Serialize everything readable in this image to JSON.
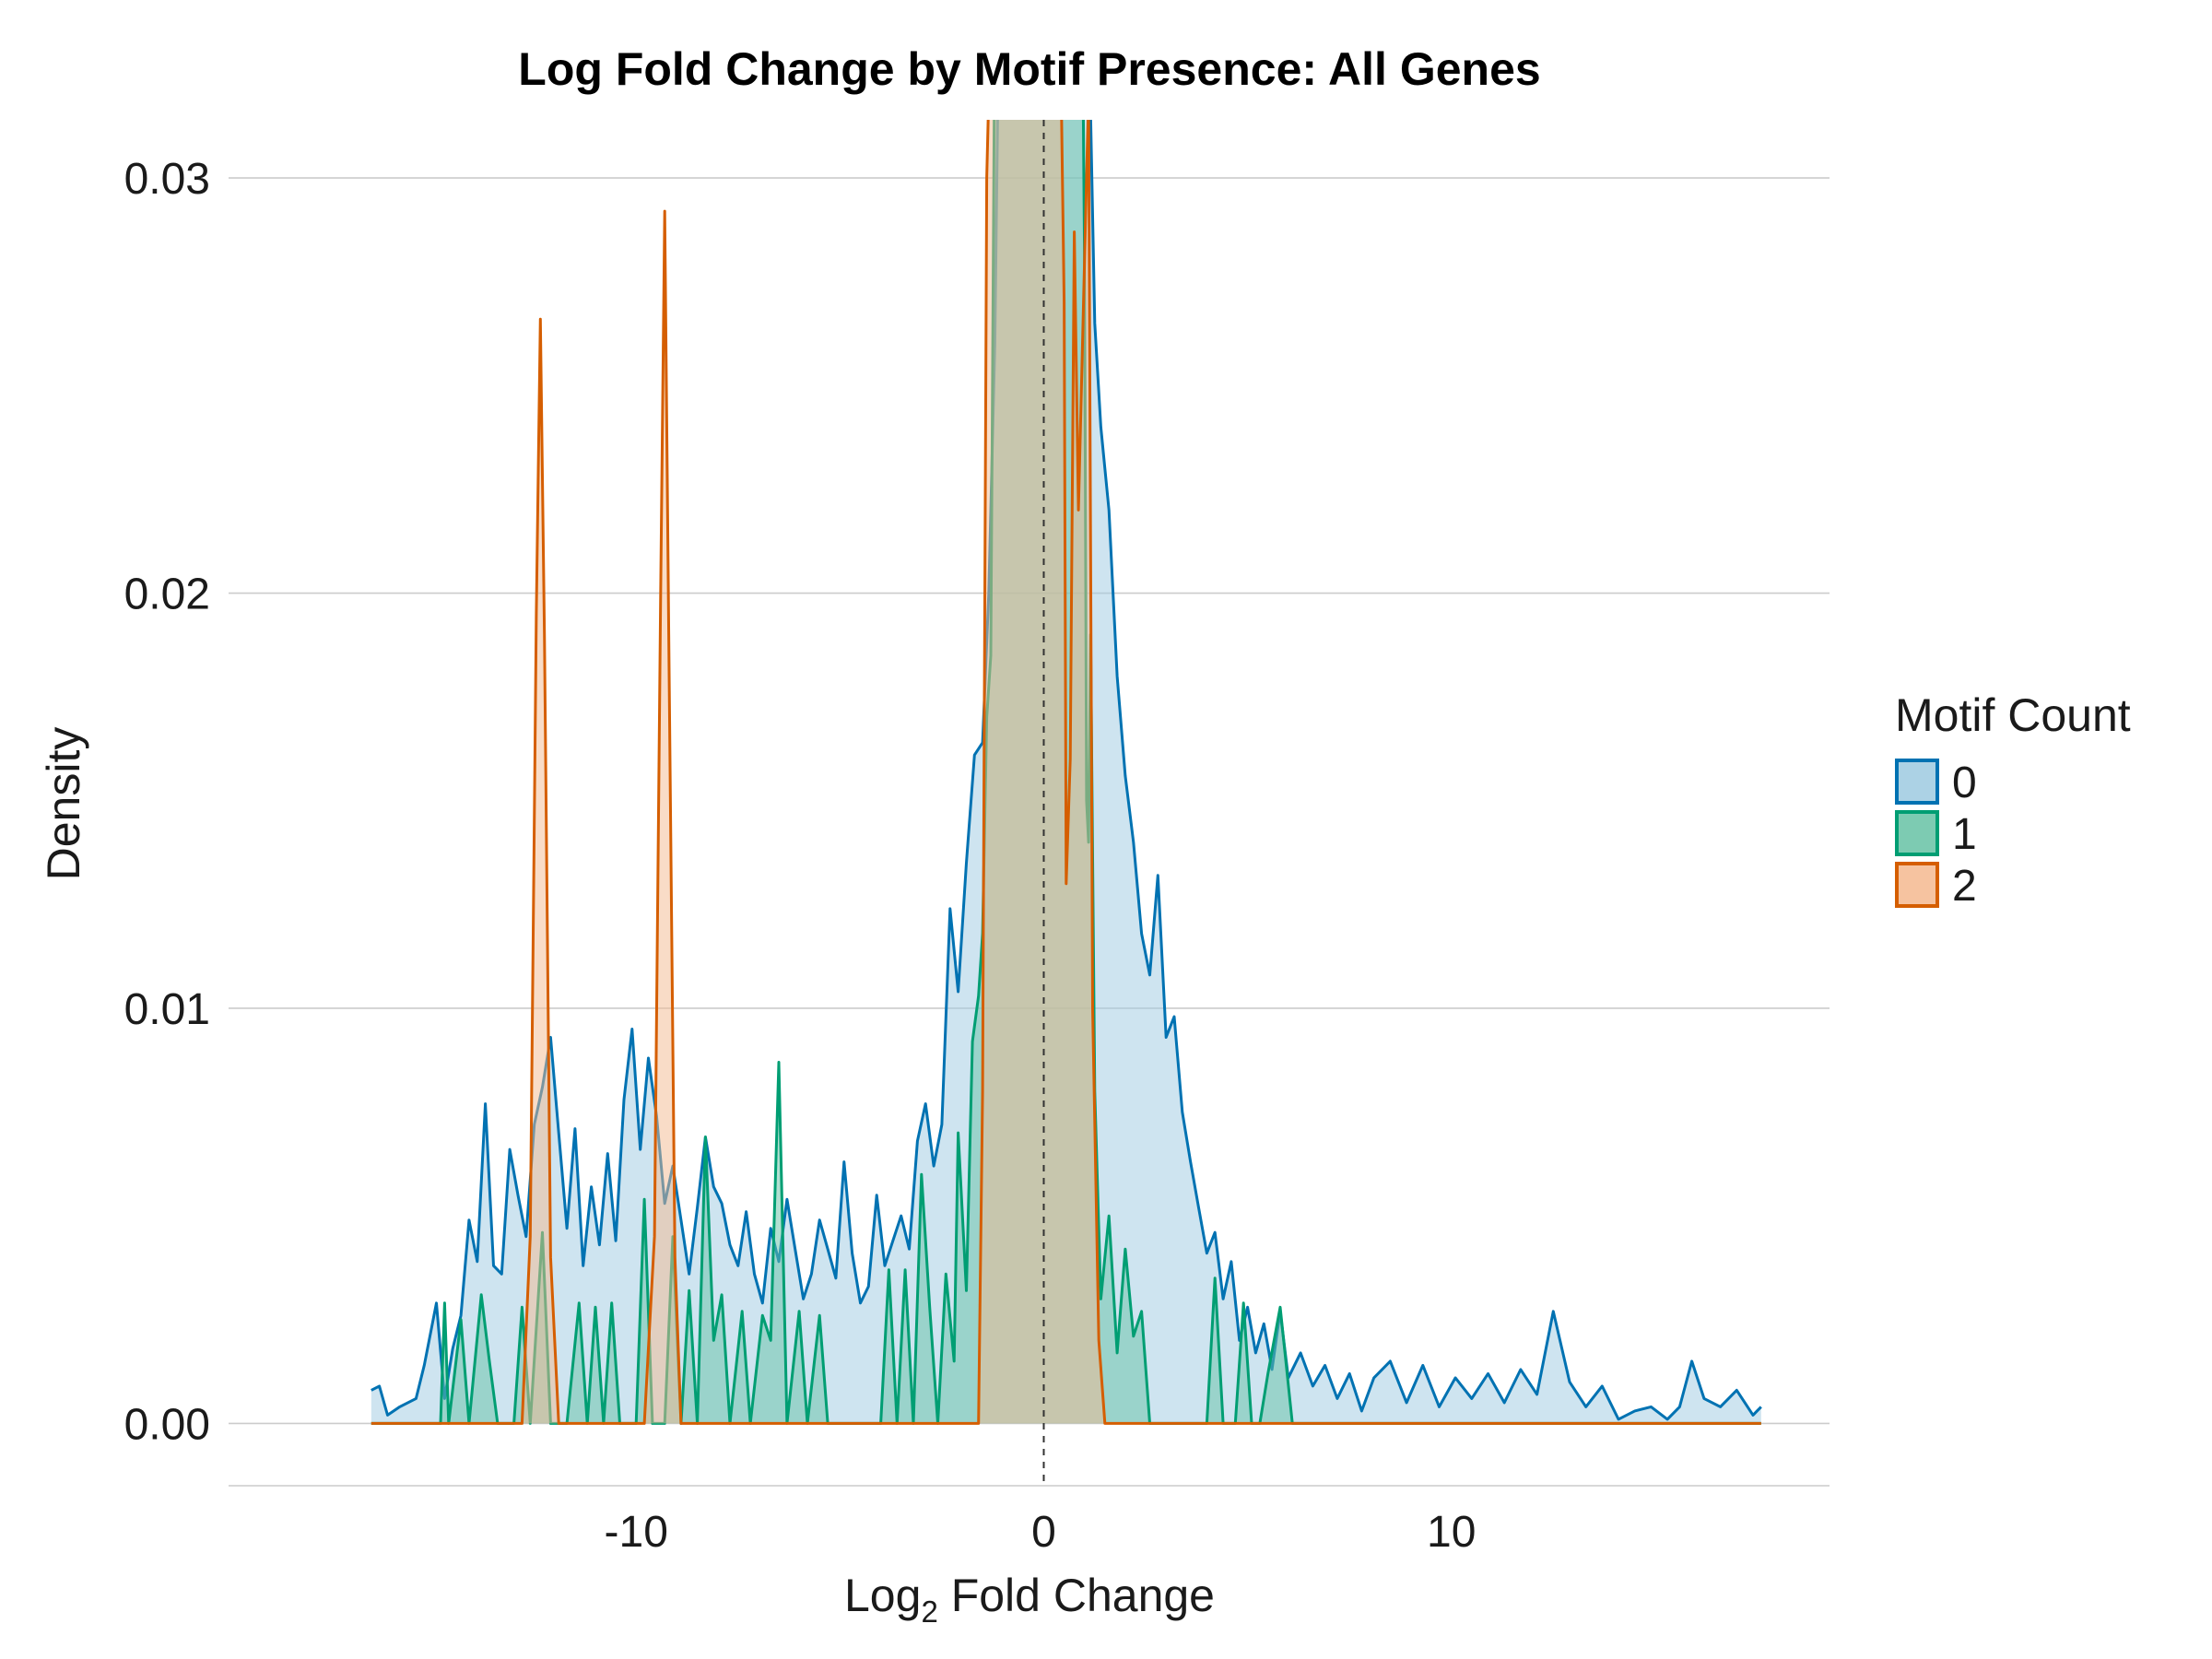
{
  "chart_data": {
    "type": "area",
    "title": "Log Fold Change by Motif Presence: All Genes",
    "xlabel": "Log",
    "xlabel_subscript": "2",
    "xlabel_suffix": " Fold Change",
    "ylabel": "Density",
    "xlim": [
      -20,
      19.3
    ],
    "ylim": [
      -0.0015,
      0.0314
    ],
    "x_ticks": [
      -10,
      0,
      10
    ],
    "x_tick_labels": [
      "-10",
      "0",
      "10"
    ],
    "y_ticks": [
      0,
      0.01,
      0.02,
      0.03
    ],
    "y_tick_labels": [
      "0.00",
      "0.01",
      "0.02",
      "0.03"
    ],
    "grid": "horizontal",
    "reference_line_x": 0,
    "legend": {
      "title": "Motif Count",
      "position": "right"
    },
    "series": [
      {
        "name": "0",
        "color": "#0072B2",
        "fill": "#9ECAE1",
        "points": [
          [
            -16.5,
            0.0008
          ],
          [
            -16.3,
            0.0009
          ],
          [
            -16.1,
            0.0002
          ],
          [
            -15.8,
            0.0004
          ],
          [
            -15.4,
            0.0006
          ],
          [
            -15.2,
            0.0014
          ],
          [
            -14.9,
            0.0029
          ],
          [
            -14.7,
            0.0006
          ],
          [
            -14.5,
            0.0018
          ],
          [
            -14.3,
            0.0026
          ],
          [
            -14.1,
            0.0049
          ],
          [
            -13.9,
            0.0039
          ],
          [
            -13.7,
            0.0077
          ],
          [
            -13.5,
            0.0038
          ],
          [
            -13.3,
            0.0036
          ],
          [
            -13.1,
            0.0066
          ],
          [
            -12.9,
            0.0055
          ],
          [
            -12.7,
            0.0045
          ],
          [
            -12.5,
            0.0072
          ],
          [
            -12.3,
            0.0081
          ],
          [
            -12.1,
            0.0093
          ],
          [
            -11.9,
            0.007
          ],
          [
            -11.7,
            0.0047
          ],
          [
            -11.5,
            0.0071
          ],
          [
            -11.3,
            0.0038
          ],
          [
            -11.1,
            0.0057
          ],
          [
            -10.9,
            0.0043
          ],
          [
            -10.7,
            0.0065
          ],
          [
            -10.5,
            0.0044
          ],
          [
            -10.3,
            0.0078
          ],
          [
            -10.1,
            0.0095
          ],
          [
            -9.9,
            0.0066
          ],
          [
            -9.7,
            0.0088
          ],
          [
            -9.5,
            0.0074
          ],
          [
            -9.3,
            0.0053
          ],
          [
            -9.1,
            0.0062
          ],
          [
            -8.9,
            0.0049
          ],
          [
            -8.7,
            0.0036
          ],
          [
            -8.5,
            0.0052
          ],
          [
            -8.3,
            0.0069
          ],
          [
            -8.1,
            0.0057
          ],
          [
            -7.9,
            0.0053
          ],
          [
            -7.7,
            0.0043
          ],
          [
            -7.5,
            0.0038
          ],
          [
            -7.3,
            0.0051
          ],
          [
            -7.1,
            0.0036
          ],
          [
            -6.9,
            0.0029
          ],
          [
            -6.7,
            0.0047
          ],
          [
            -6.5,
            0.0039
          ],
          [
            -6.3,
            0.0054
          ],
          [
            -6.1,
            0.0042
          ],
          [
            -5.9,
            0.003
          ],
          [
            -5.7,
            0.0036
          ],
          [
            -5.5,
            0.0049
          ],
          [
            -5.3,
            0.0042
          ],
          [
            -5.1,
            0.0035
          ],
          [
            -4.9,
            0.0063
          ],
          [
            -4.7,
            0.0041
          ],
          [
            -4.5,
            0.0029
          ],
          [
            -4.3,
            0.0033
          ],
          [
            -4.1,
            0.0055
          ],
          [
            -3.9,
            0.0038
          ],
          [
            -3.7,
            0.0044
          ],
          [
            -3.5,
            0.005
          ],
          [
            -3.3,
            0.0042
          ],
          [
            -3.1,
            0.0068
          ],
          [
            -2.9,
            0.0077
          ],
          [
            -2.7,
            0.0062
          ],
          [
            -2.5,
            0.0072
          ],
          [
            -2.3,
            0.0124
          ],
          [
            -2.1,
            0.0104
          ],
          [
            -1.9,
            0.0135
          ],
          [
            -1.7,
            0.0161
          ],
          [
            -1.5,
            0.0164
          ],
          [
            -1.35,
            0.02
          ],
          [
            -1.2,
            0.026
          ],
          [
            -1.1,
            0.034
          ],
          [
            -0.5,
            0.034
          ],
          [
            0,
            0.034
          ],
          [
            0.5,
            0.034
          ],
          [
            1.1,
            0.034
          ],
          [
            1.25,
            0.0265
          ],
          [
            1.4,
            0.024
          ],
          [
            1.6,
            0.022
          ],
          [
            1.8,
            0.018
          ],
          [
            2.0,
            0.0156
          ],
          [
            2.2,
            0.014
          ],
          [
            2.4,
            0.0118
          ],
          [
            2.6,
            0.0108
          ],
          [
            2.8,
            0.0132
          ],
          [
            3.0,
            0.0093
          ],
          [
            3.2,
            0.0098
          ],
          [
            3.4,
            0.0075
          ],
          [
            3.6,
            0.0063
          ],
          [
            3.8,
            0.0052
          ],
          [
            4.0,
            0.0041
          ],
          [
            4.2,
            0.0046
          ],
          [
            4.4,
            0.003
          ],
          [
            4.6,
            0.0039
          ],
          [
            4.8,
            0.002
          ],
          [
            5.0,
            0.0028
          ],
          [
            5.2,
            0.0017
          ],
          [
            5.4,
            0.0024
          ],
          [
            5.6,
            0.0013
          ],
          [
            5.8,
            0.0027
          ],
          [
            6.0,
            0.0011
          ],
          [
            6.3,
            0.0017
          ],
          [
            6.6,
            0.0009
          ],
          [
            6.9,
            0.0014
          ],
          [
            7.2,
            0.0006
          ],
          [
            7.5,
            0.0012
          ],
          [
            7.8,
            0.0003
          ],
          [
            8.1,
            0.0011
          ],
          [
            8.5,
            0.0015
          ],
          [
            8.9,
            0.0005
          ],
          [
            9.3,
            0.0014
          ],
          [
            9.7,
            0.0004
          ],
          [
            10.1,
            0.0011
          ],
          [
            10.5,
            0.0006
          ],
          [
            10.9,
            0.0012
          ],
          [
            11.3,
            0.0005
          ],
          [
            11.7,
            0.0013
          ],
          [
            12.1,
            0.0007
          ],
          [
            12.5,
            0.0027
          ],
          [
            12.9,
            0.001
          ],
          [
            13.3,
            0.0004
          ],
          [
            13.7,
            0.0009
          ],
          [
            14.1,
            0.0001
          ],
          [
            14.5,
            0.0003
          ],
          [
            14.9,
            0.0004
          ],
          [
            15.3,
            0.0001
          ],
          [
            15.6,
            0.0004
          ],
          [
            15.9,
            0.0015
          ],
          [
            16.2,
            0.0006
          ],
          [
            16.6,
            0.0004
          ],
          [
            17.0,
            0.0008
          ],
          [
            17.4,
            0.0002
          ],
          [
            17.6,
            0.0004
          ]
        ]
      },
      {
        "name": "1",
        "color": "#009E73",
        "fill": "#66C2A5",
        "points": [
          [
            -16.5,
            0.0
          ],
          [
            -14.8,
            0.0
          ],
          [
            -14.7,
            0.0029
          ],
          [
            -14.6,
            0.0
          ],
          [
            -14.3,
            0.0025
          ],
          [
            -14.1,
            0.0
          ],
          [
            -13.8,
            0.0031
          ],
          [
            -13.6,
            0.0015
          ],
          [
            -13.4,
            0.0
          ],
          [
            -13.0,
            0.0
          ],
          [
            -12.8,
            0.0028
          ],
          [
            -12.6,
            0.0
          ],
          [
            -12.3,
            0.0046
          ],
          [
            -12.1,
            0.0
          ],
          [
            -11.7,
            0.0
          ],
          [
            -11.4,
            0.0029
          ],
          [
            -11.2,
            0.0
          ],
          [
            -11.0,
            0.0028
          ],
          [
            -10.8,
            0.0
          ],
          [
            -10.6,
            0.0029
          ],
          [
            -10.4,
            0.0
          ],
          [
            -10.0,
            0.0
          ],
          [
            -9.8,
            0.0054
          ],
          [
            -9.6,
            0.0
          ],
          [
            -9.3,
            0.0
          ],
          [
            -9.1,
            0.0045
          ],
          [
            -8.9,
            0.0
          ],
          [
            -8.7,
            0.0032
          ],
          [
            -8.5,
            0.0
          ],
          [
            -8.3,
            0.0069
          ],
          [
            -8.1,
            0.002
          ],
          [
            -7.9,
            0.0031
          ],
          [
            -7.7,
            0.0
          ],
          [
            -7.4,
            0.0027
          ],
          [
            -7.2,
            0.0
          ],
          [
            -6.9,
            0.0026
          ],
          [
            -6.7,
            0.002
          ],
          [
            -6.5,
            0.0087
          ],
          [
            -6.3,
            0.0
          ],
          [
            -6.0,
            0.0027
          ],
          [
            -5.8,
            0.0
          ],
          [
            -5.5,
            0.0026
          ],
          [
            -5.3,
            0.0
          ],
          [
            -5.0,
            0.0
          ],
          [
            -4.8,
            0.0
          ],
          [
            -4.0,
            0.0
          ],
          [
            -3.8,
            0.0037
          ],
          [
            -3.6,
            0.0
          ],
          [
            -3.4,
            0.0037
          ],
          [
            -3.2,
            0.0
          ],
          [
            -3.0,
            0.006
          ],
          [
            -2.8,
            0.0028
          ],
          [
            -2.6,
            0.0
          ],
          [
            -2.4,
            0.0036
          ],
          [
            -2.2,
            0.0015
          ],
          [
            -2.1,
            0.007
          ],
          [
            -1.9,
            0.0032
          ],
          [
            -1.75,
            0.0092
          ],
          [
            -1.6,
            0.0103
          ],
          [
            -1.5,
            0.0118
          ],
          [
            -1.4,
            0.017
          ],
          [
            -1.3,
            0.0185
          ],
          [
            -1.2,
            0.034
          ],
          [
            0.0,
            0.034
          ],
          [
            0.95,
            0.034
          ],
          [
            1.0,
            0.028
          ],
          [
            1.05,
            0.015
          ],
          [
            1.1,
            0.014
          ],
          [
            1.15,
            0.019
          ],
          [
            1.25,
            0.008
          ],
          [
            1.4,
            0.003
          ],
          [
            1.6,
            0.005
          ],
          [
            1.8,
            0.0017
          ],
          [
            2.0,
            0.0042
          ],
          [
            2.2,
            0.0021
          ],
          [
            2.4,
            0.0027
          ],
          [
            2.6,
            0.0
          ],
          [
            2.9,
            0.0
          ],
          [
            3.1,
            0.0
          ],
          [
            3.6,
            0.0
          ],
          [
            4.0,
            0.0
          ],
          [
            4.2,
            0.0035
          ],
          [
            4.4,
            0.0
          ],
          [
            4.7,
            0.0
          ],
          [
            4.9,
            0.0029
          ],
          [
            5.1,
            0.0
          ],
          [
            5.3,
            0.0
          ],
          [
            5.5,
            0.0012
          ],
          [
            5.8,
            0.0028
          ],
          [
            6.1,
            0.0
          ],
          [
            17.6,
            0.0
          ]
        ]
      },
      {
        "name": "2",
        "color": "#D55E00",
        "fill": "#F4B98F",
        "points": [
          [
            -16.5,
            0.0
          ],
          [
            -12.8,
            0.0
          ],
          [
            -12.6,
            0.0045
          ],
          [
            -12.45,
            0.0195
          ],
          [
            -12.35,
            0.0266
          ],
          [
            -12.25,
            0.019
          ],
          [
            -12.1,
            0.004
          ],
          [
            -11.9,
            0.0
          ],
          [
            -9.8,
            0.0
          ],
          [
            -9.55,
            0.0045
          ],
          [
            -9.4,
            0.02
          ],
          [
            -9.3,
            0.0292
          ],
          [
            -9.2,
            0.019
          ],
          [
            -9.05,
            0.004
          ],
          [
            -8.9,
            0.0
          ],
          [
            -1.6,
            0.0
          ],
          [
            -1.5,
            0.008
          ],
          [
            -1.4,
            0.03
          ],
          [
            -1.3,
            0.034
          ],
          [
            0.0,
            0.034
          ],
          [
            0.4,
            0.034
          ],
          [
            0.5,
            0.027
          ],
          [
            0.55,
            0.013
          ],
          [
            0.65,
            0.016
          ],
          [
            0.75,
            0.0287
          ],
          [
            0.85,
            0.022
          ],
          [
            1.0,
            0.028
          ],
          [
            1.1,
            0.032
          ],
          [
            1.2,
            0.01
          ],
          [
            1.35,
            0.002
          ],
          [
            1.5,
            0.0
          ],
          [
            17.6,
            0.0
          ]
        ]
      }
    ]
  }
}
